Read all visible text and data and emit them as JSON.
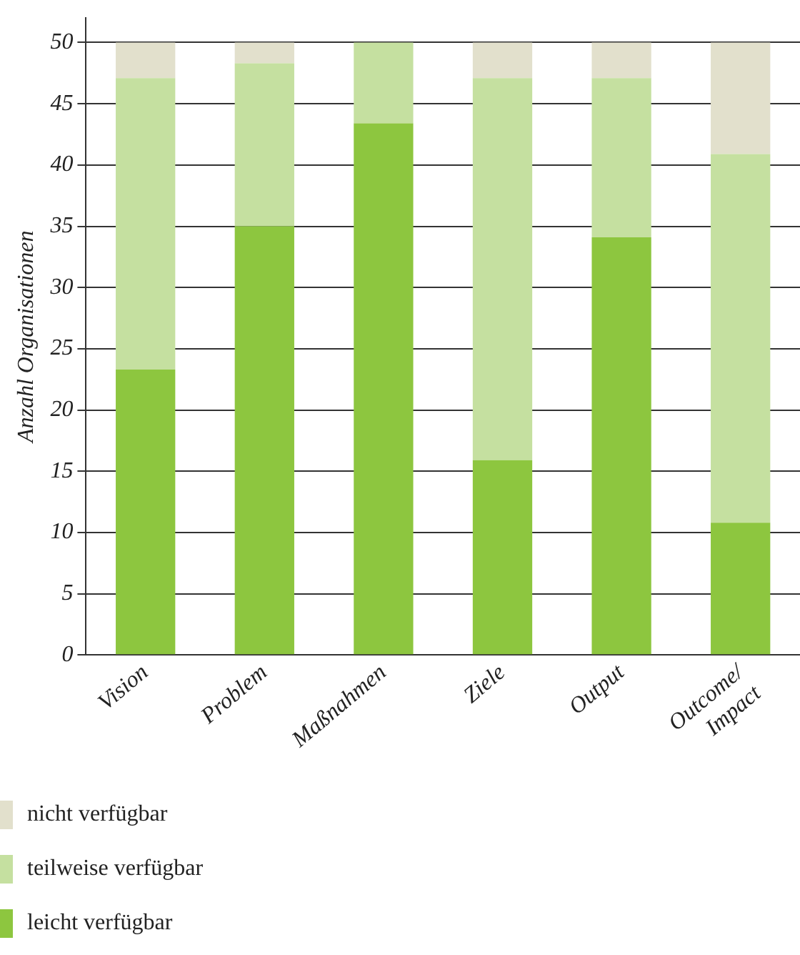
{
  "chart_data": {
    "type": "bar",
    "stacked": true,
    "ylabel": "Anzahl Organisationen",
    "categories": [
      "Vision",
      "Problem",
      "Maßnahmen",
      "Ziele",
      "Output",
      "Outcome/\nImpact"
    ],
    "series": [
      {
        "name": "leicht verfügbar",
        "color": "#8dc63f",
        "values": [
          23.3,
          35,
          43.4,
          15.9,
          34.1,
          10.8
        ]
      },
      {
        "name": "teilweise verfügbar",
        "color": "#c5e0a0",
        "values": [
          23.8,
          13.3,
          6.6,
          31.2,
          13,
          30.1
        ]
      },
      {
        "name": "nicht verfügbar",
        "color": "#e2e0cc",
        "values": [
          2.9,
          1.7,
          0,
          2.9,
          2.9,
          9.1
        ]
      }
    ],
    "ylim": [
      0,
      52
    ],
    "yticks": [
      0,
      5,
      10,
      15,
      20,
      25,
      30,
      35,
      40,
      45,
      50
    ],
    "grid": "y",
    "legend": "bottom left"
  }
}
